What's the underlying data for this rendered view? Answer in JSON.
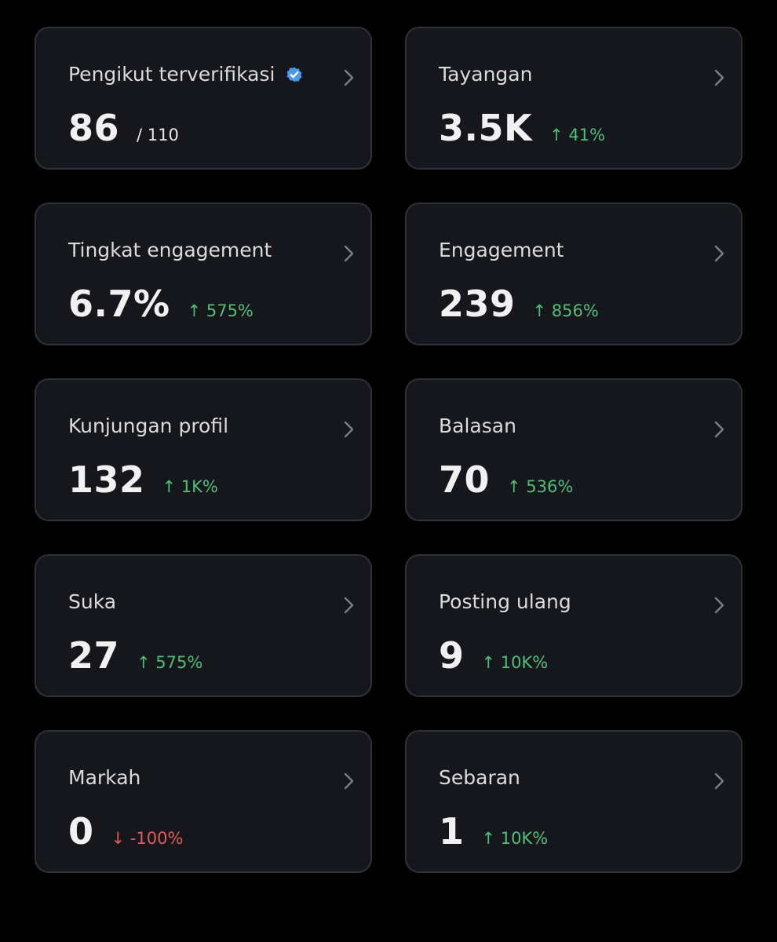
{
  "metrics": [
    {
      "label": "Pengikut terverifikasi",
      "value": "86",
      "sub": "/ 110",
      "delta": "",
      "verified": true
    },
    {
      "label": "Tayangan",
      "value": "3.5K",
      "sub": "",
      "delta": "↑ 41%",
      "direction": "up"
    },
    {
      "label": "Tingkat engagement",
      "value": "6.7%",
      "sub": "",
      "delta": "↑ 575%",
      "direction": "up"
    },
    {
      "label": "Engagement",
      "value": "239",
      "sub": "",
      "delta": "↑ 856%",
      "direction": "up"
    },
    {
      "label": "Kunjungan profil",
      "value": "132",
      "sub": "",
      "delta": "↑ 1K%",
      "direction": "up"
    },
    {
      "label": "Balasan",
      "value": "70",
      "sub": "",
      "delta": "↑ 536%",
      "direction": "up"
    },
    {
      "label": "Suka",
      "value": "27",
      "sub": "",
      "delta": "↑ 575%",
      "direction": "up"
    },
    {
      "label": "Posting ulang",
      "value": "9",
      "sub": "",
      "delta": "↑ 10K%",
      "direction": "up"
    },
    {
      "label": "Markah",
      "value": "0",
      "sub": "",
      "delta": "↓ -100%",
      "direction": "down"
    },
    {
      "label": "Sebaran",
      "value": "1",
      "sub": "",
      "delta": "↑ 10K%",
      "direction": "up"
    }
  ],
  "colors": {
    "background": "#000000",
    "card": "#16171c",
    "border": "#2f3238",
    "up": "#4fbf78",
    "down": "#e05b5b",
    "verified": "#4a99e9"
  },
  "icons": {
    "verified": "verified-badge-icon",
    "chevron": "chevron-right-icon"
  }
}
